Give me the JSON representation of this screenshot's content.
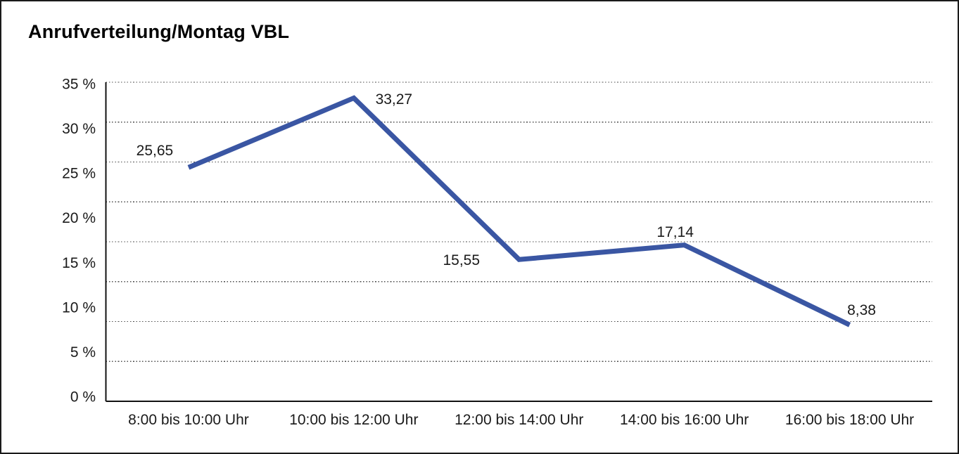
{
  "title": "Anrufverteilung/Montag VBL",
  "chart_data": {
    "type": "line",
    "title": "Anrufverteilung/Montag VBL",
    "categories": [
      "8:00 bis 10:00 Uhr",
      "10:00 bis 12:00 Uhr",
      "12:00 bis 14:00 Uhr",
      "14:00 bis 16:00 Uhr",
      "16:00 bis 18:00 Uhr"
    ],
    "series": [
      {
        "name": "Anrufverteilung Montag VBL",
        "values": [
          25.65,
          33.27,
          15.55,
          17.14,
          8.38
        ],
        "value_labels": [
          "25,65",
          "33,27",
          "15,55",
          "17,14",
          "8,38"
        ]
      }
    ],
    "xlabel": "",
    "ylabel": "",
    "y_ticks": [
      "35 %",
      "30 %",
      "25 %",
      "20 %",
      "15 %",
      "10 %",
      "5 %",
      "0 %"
    ],
    "ylim": [
      0,
      35
    ],
    "grid": "horizontal-dotted",
    "legend": "none",
    "line_color": "#3A56A3",
    "axis_color": "#111111",
    "gridline_color": "#4d4d4d"
  }
}
